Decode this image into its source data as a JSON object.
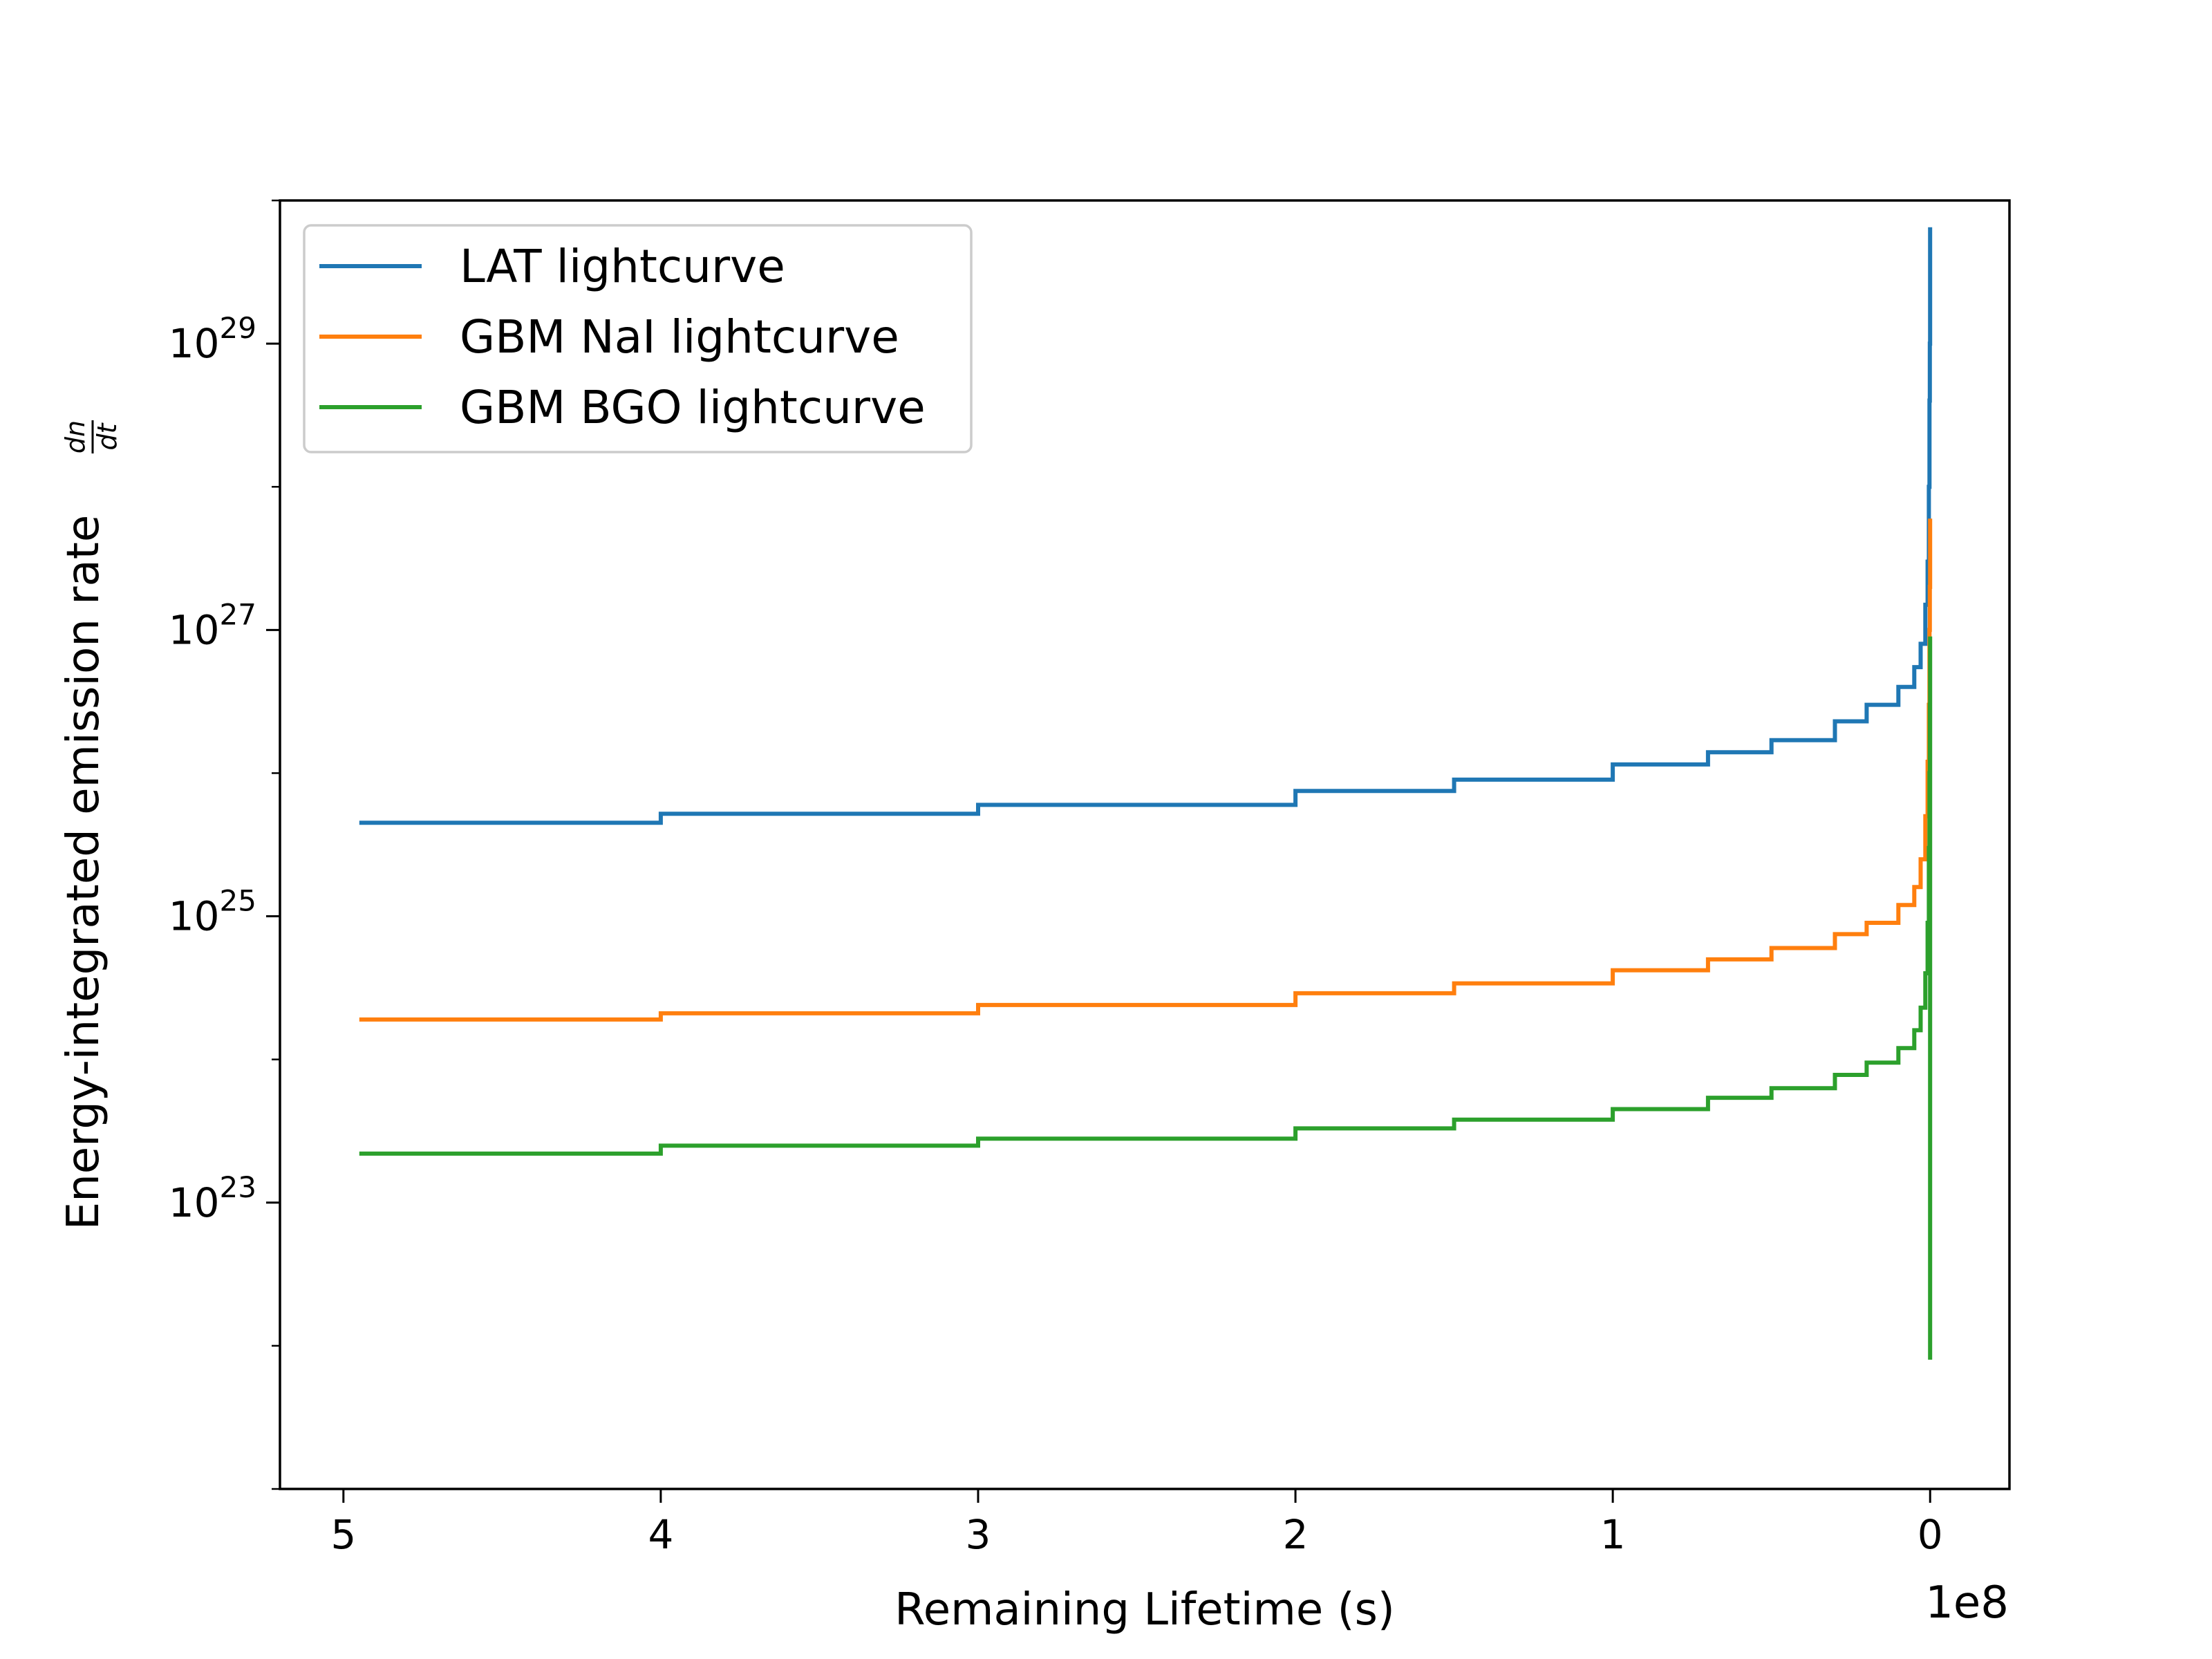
{
  "chart_data": {
    "type": "line",
    "xlabel": "Remaining Lifetime (s)",
    "x_offset_label": "1e8",
    "ylabel": "Energy-integrated emission rate",
    "ylabel_fraction": {
      "numerator": "dn",
      "denominator": "dt"
    },
    "x_scale": "linear",
    "x_inverted": true,
    "xlim": [
      5.2,
      -0.25
    ],
    "x_ticks": [
      5,
      4,
      3,
      2,
      1,
      0
    ],
    "x_tick_labels": [
      "5",
      "4",
      "3",
      "2",
      "1",
      "0"
    ],
    "y_scale": "log",
    "ylim": [
      1e+21,
      1e+30
    ],
    "y_ticks": [
      {
        "value": 1e+23,
        "base": "10",
        "exp": "23"
      },
      {
        "value": 1e+25,
        "base": "10",
        "exp": "25"
      },
      {
        "value": 1e+27,
        "base": "10",
        "exp": "27"
      },
      {
        "value": 1e+29,
        "base": "10",
        "exp": "29"
      }
    ],
    "grid": false,
    "legend_position": "top-left",
    "series": [
      {
        "name": "LAT lightcurve",
        "color": "#1f77b4",
        "x": [
          4.95,
          4.0,
          3.0,
          2.0,
          1.5,
          1.0,
          0.7,
          0.5,
          0.3,
          0.2,
          0.1,
          0.05,
          0.03,
          0.015,
          0.008,
          0.004,
          0.002,
          0.001,
          0.0
        ],
        "y": [
          4.5e+25,
          5.2e+25,
          6e+25,
          7.5e+25,
          9e+25,
          1.15e+26,
          1.4e+26,
          1.7e+26,
          2.3e+26,
          3e+26,
          4e+26,
          5.5e+26,
          8e+26,
          1.5e+27,
          3e+27,
          1e+28,
          4e+28,
          1e+29,
          6.5e+29
        ]
      },
      {
        "name": "GBM NaI lightcurve",
        "color": "#ff7f0e",
        "x": [
          4.95,
          4.0,
          3.0,
          2.0,
          1.5,
          1.0,
          0.7,
          0.5,
          0.3,
          0.2,
          0.1,
          0.05,
          0.03,
          0.015,
          0.008,
          0.004,
          0.002,
          0.001,
          0.0
        ],
        "y": [
          1.9e+24,
          2.1e+24,
          2.4e+24,
          2.9e+24,
          3.4e+24,
          4.2e+24,
          5e+24,
          6e+24,
          7.5e+24,
          9e+24,
          1.2e+25,
          1.6e+25,
          2.5e+25,
          5e+25,
          1.2e+26,
          3e+26,
          1e+27,
          2e+27,
          6e+27
        ]
      },
      {
        "name": "GBM BGO lightcurve",
        "color": "#2ca02c",
        "x": [
          4.95,
          4.0,
          3.0,
          2.0,
          1.5,
          1.0,
          0.7,
          0.5,
          0.3,
          0.2,
          0.1,
          0.05,
          0.03,
          0.015,
          0.008,
          0.004,
          0.002,
          0.001,
          0.0
        ],
        "y": [
          2.2e+23,
          2.5e+23,
          2.8e+23,
          3.3e+23,
          3.8e+23,
          4.5e+23,
          5.4e+23,
          6.3e+23,
          7.8e+23,
          9.5e+23,
          1.2e+24,
          1.6e+24,
          2.3e+24,
          4e+24,
          9e+24,
          3e+25,
          1e+26,
          3e+26,
          9e+26
        ]
      }
    ],
    "final_drop": {
      "series": "GBM BGO lightcurve",
      "x": 0.0,
      "y_min": 8e+21
    }
  }
}
